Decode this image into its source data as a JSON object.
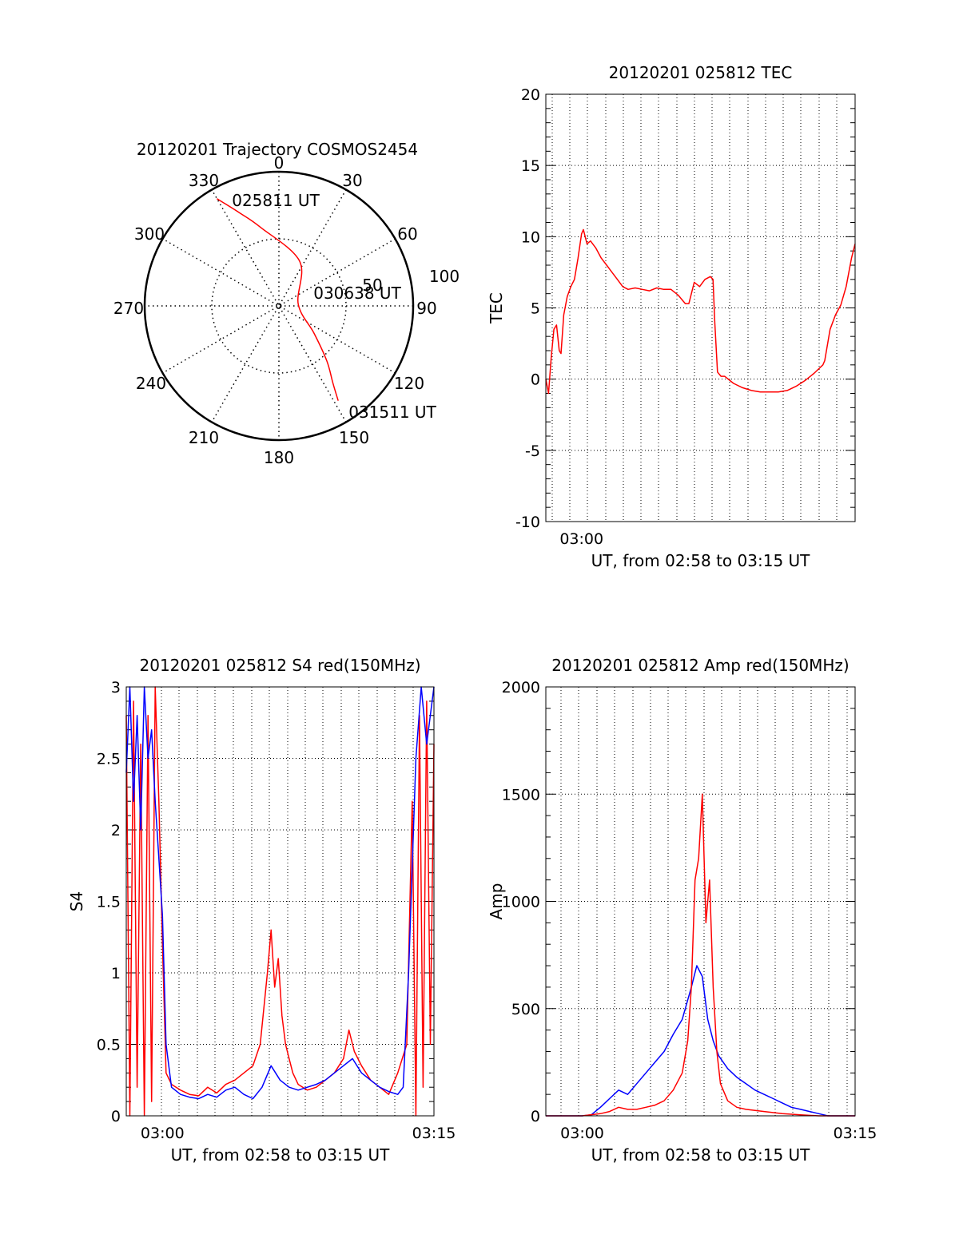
{
  "chart_data": [
    {
      "type": "polar",
      "title": "20120201 Trajectory COSMOS2454",
      "angle_labels": [
        "0",
        "30",
        "60",
        "90",
        "120",
        "150",
        "180",
        "210",
        "240",
        "270",
        "300",
        "330"
      ],
      "radius_labels": [
        "50",
        "100"
      ],
      "rlim": [
        0,
        90
      ],
      "track": {
        "color": "#ff0000",
        "points": [
          [
            330,
            83
          ],
          [
            337,
            68
          ],
          [
            347,
            54
          ],
          [
            25,
            33
          ],
          [
            85,
            13
          ],
          [
            128,
            30
          ],
          [
            139,
            49
          ],
          [
            145,
            63
          ],
          [
            148,
            75
          ]
        ]
      },
      "annotations": [
        "025811 UT",
        "030638 UT",
        "031511 UT"
      ]
    },
    {
      "type": "line",
      "title": "20120201 025812 TEC",
      "xlabel": "UT, from 02:58 to 03:15 UT",
      "ylabel": "TEC",
      "xlim": [
        0,
        17.3
      ],
      "ylim": [
        -10,
        20
      ],
      "yticks": [
        "-10",
        "-5",
        "0",
        "5",
        "10",
        "15",
        "20"
      ],
      "xticks": [
        {
          "x": 2,
          "label": "03:00"
        }
      ],
      "grid": true,
      "series": [
        {
          "color": "#ff0000",
          "x": [
            0,
            0.15,
            0.3,
            0.45,
            0.6,
            0.75,
            0.85,
            1.0,
            1.2,
            1.4,
            1.6,
            1.8,
            2.0,
            2.1,
            2.3,
            2.5,
            2.8,
            3.1,
            3.4,
            3.7,
            4.0,
            4.3,
            4.6,
            5.0,
            5.4,
            5.8,
            6.2,
            6.6,
            7.0,
            7.4,
            7.8,
            8.0,
            8.3,
            8.6,
            8.9,
            9.2,
            9.35,
            9.45,
            9.6,
            9.8,
            10.0,
            10.5,
            11.0,
            11.5,
            12.0,
            12.5,
            13.0,
            13.5,
            14.0,
            14.5,
            15.0,
            15.5,
            15.6,
            15.9,
            16.2,
            16.5,
            16.8,
            17.1,
            17.3
          ],
          "y": [
            0,
            -1,
            1.5,
            3.5,
            3.8,
            2,
            1.8,
            4.5,
            5.8,
            6.5,
            7,
            8.5,
            10.2,
            10.5,
            9.5,
            9.7,
            9.2,
            8.5,
            8,
            7.5,
            7,
            6.5,
            6.3,
            6.4,
            6.3,
            6.2,
            6.4,
            6.3,
            6.3,
            5.9,
            5.3,
            5.3,
            6.8,
            6.5,
            7,
            7.2,
            7,
            4,
            0.5,
            0.2,
            0.2,
            -0.3,
            -0.6,
            -0.8,
            -0.9,
            -0.9,
            -0.9,
            -0.8,
            -0.5,
            -0.1,
            0.4,
            1,
            1.3,
            3.5,
            4.5,
            5.2,
            6.5,
            8.5,
            9.5
          ]
        }
      ]
    },
    {
      "type": "line",
      "title": "20120201 025812 S4 red(150MHz)",
      "xlabel": "UT, from 02:58 to 03:15 UT",
      "ylabel": "S4",
      "xlim": [
        0,
        17
      ],
      "ylim": [
        0,
        3
      ],
      "yticks": [
        "0",
        "0.5",
        "1",
        "1.5",
        "2",
        "2.5",
        "3"
      ],
      "xticks": [
        {
          "x": 2,
          "label": "03:00"
        },
        {
          "x": 17,
          "label": "03:15"
        }
      ],
      "grid": true,
      "series": [
        {
          "color": "#ff0000",
          "x": [
            0,
            0.2,
            0.4,
            0.6,
            0.8,
            1.0,
            1.2,
            1.4,
            1.6,
            1.8,
            2.0,
            2.2,
            2.5,
            3.0,
            3.5,
            4.0,
            4.5,
            5.0,
            5.5,
            6.0,
            6.5,
            7.0,
            7.4,
            7.8,
            8.0,
            8.2,
            8.4,
            8.6,
            8.8,
            9.0,
            9.2,
            9.5,
            10.0,
            10.5,
            11.0,
            11.5,
            12.0,
            12.3,
            12.6,
            13.0,
            13.5,
            14.0,
            14.5,
            15.0,
            15.5,
            15.8,
            16.0,
            16.2,
            16.4,
            16.6,
            16.8,
            17.0
          ],
          "y": [
            2.8,
            0,
            2.9,
            0.2,
            2.6,
            0,
            2.8,
            0.1,
            3.0,
            2.2,
            1.2,
            0.3,
            0.22,
            0.18,
            0.15,
            0.14,
            0.2,
            0.16,
            0.22,
            0.25,
            0.3,
            0.35,
            0.5,
            1.0,
            1.3,
            0.9,
            1.1,
            0.7,
            0.5,
            0.4,
            0.3,
            0.22,
            0.18,
            0.2,
            0.25,
            0.3,
            0.4,
            0.6,
            0.45,
            0.35,
            0.25,
            0.2,
            0.15,
            0.3,
            0.5,
            2.2,
            0,
            2.8,
            0.2,
            2.9,
            0.5,
            2.6
          ]
        },
        {
          "color": "#0000ff",
          "x": [
            0,
            0.2,
            0.4,
            0.6,
            0.8,
            1.0,
            1.2,
            1.4,
            1.6,
            1.8,
            2.0,
            2.2,
            2.5,
            3.0,
            3.5,
            4.0,
            4.5,
            5.0,
            5.5,
            6.0,
            6.5,
            7.0,
            7.5,
            8.0,
            8.5,
            9.0,
            9.5,
            10.0,
            10.5,
            11.0,
            11.5,
            12.0,
            12.5,
            13.0,
            13.5,
            14.0,
            14.5,
            15.0,
            15.3,
            15.6,
            16.0,
            16.3,
            16.6,
            17.0
          ],
          "y": [
            2.4,
            3.0,
            2.2,
            2.8,
            2.0,
            3.0,
            2.5,
            2.7,
            2.2,
            1.8,
            1.4,
            0.5,
            0.2,
            0.15,
            0.13,
            0.12,
            0.15,
            0.13,
            0.18,
            0.2,
            0.15,
            0.12,
            0.2,
            0.35,
            0.25,
            0.2,
            0.18,
            0.2,
            0.22,
            0.25,
            0.3,
            0.35,
            0.4,
            0.3,
            0.25,
            0.2,
            0.17,
            0.15,
            0.2,
            1.0,
            2.5,
            3.0,
            2.6,
            3.0
          ]
        }
      ]
    },
    {
      "type": "line",
      "title": "20120201 025812 Amp red(150MHz)",
      "xlabel": "UT, from 02:58 to 03:15 UT",
      "ylabel": "Amp",
      "xlim": [
        0,
        17
      ],
      "ylim": [
        0,
        2000
      ],
      "yticks": [
        "0",
        "500",
        "1000",
        "1500",
        "2000"
      ],
      "xticks": [
        {
          "x": 2,
          "label": "03:00"
        },
        {
          "x": 17,
          "label": "03:15"
        }
      ],
      "grid": true,
      "series": [
        {
          "color": "#0000ff",
          "x": [
            0,
            1,
            2,
            2.5,
            3,
            3.5,
            4,
            4.5,
            5,
            5.5,
            6,
            6.5,
            7,
            7.5,
            8,
            8.3,
            8.6,
            8.9,
            9.2,
            9.5,
            10,
            10.5,
            11,
            11.5,
            12,
            12.5,
            13,
            13.5,
            14,
            14.5,
            15,
            15.5,
            16,
            17
          ],
          "y": [
            0,
            0,
            0,
            5,
            40,
            80,
            120,
            100,
            150,
            200,
            250,
            300,
            380,
            450,
            600,
            700,
            650,
            450,
            350,
            280,
            220,
            180,
            150,
            120,
            100,
            80,
            60,
            40,
            30,
            20,
            10,
            0,
            0,
            0
          ]
        },
        {
          "color": "#ff0000",
          "x": [
            0,
            2,
            3,
            3.5,
            4,
            4.5,
            5,
            5.5,
            6,
            6.5,
            7,
            7.5,
            7.8,
            8.0,
            8.2,
            8.4,
            8.6,
            8.8,
            9.0,
            9.2,
            9.4,
            9.6,
            10,
            10.5,
            11,
            12,
            13,
            14,
            15,
            17
          ],
          "y": [
            0,
            0,
            10,
            20,
            40,
            30,
            30,
            40,
            50,
            70,
            120,
            200,
            350,
            600,
            1100,
            1200,
            1500,
            900,
            1100,
            600,
            300,
            150,
            70,
            40,
            30,
            20,
            10,
            5,
            0,
            0
          ]
        }
      ]
    }
  ]
}
